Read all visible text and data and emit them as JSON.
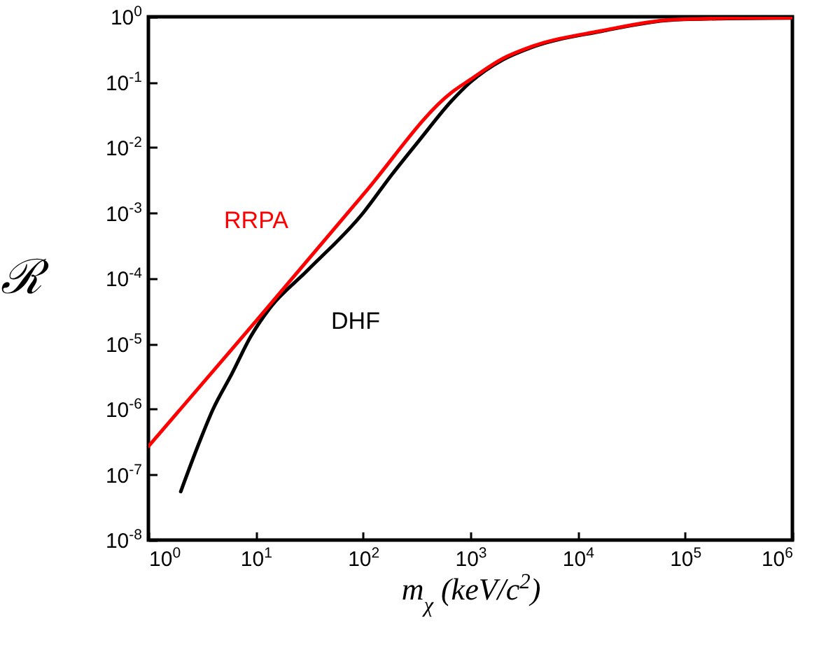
{
  "chart_data": {
    "type": "line",
    "xlabel": "m$_{χ}$ (keV/c$^{2}$)",
    "ylabel": "ℛ",
    "log": "xy",
    "grid": false,
    "line_style": "solid",
    "marker": "none",
    "xlim": [
      1,
      1000000
    ],
    "ylim": [
      1e-08,
      1
    ],
    "xticks": [
      {
        "value": 1,
        "label": "10$^{0}$"
      },
      {
        "value": 10,
        "label": "10$^{1}$"
      },
      {
        "value": 100,
        "label": "10$^{2}$"
      },
      {
        "value": 1000,
        "label": "10$^{3}$"
      },
      {
        "value": 10000,
        "label": "10$^{4}$"
      },
      {
        "value": 100000,
        "label": "10$^{5}$"
      },
      {
        "value": 1000000,
        "label": "10$^{6}$"
      }
    ],
    "yticks": [
      {
        "value": 1e-08,
        "label": "10$^{-8}$"
      },
      {
        "value": 1e-07,
        "label": "10$^{-7}$"
      },
      {
        "value": 1e-06,
        "label": "10$^{-6}$"
      },
      {
        "value": 1e-05,
        "label": "10$^{-5}$"
      },
      {
        "value": 0.0001,
        "label": "10$^{-4}$"
      },
      {
        "value": 0.001,
        "label": "10$^{-3}$"
      },
      {
        "value": 0.01,
        "label": "10$^{-2}$"
      },
      {
        "value": 0.1,
        "label": "10$^{-1}$"
      },
      {
        "value": 1,
        "label": "10$^{0}$"
      }
    ],
    "series": [
      {
        "name": "DHF",
        "color": "#000000",
        "x": [
          2,
          3,
          4,
          6,
          9,
          13.5,
          30,
          100,
          184,
          335,
          670,
          1000,
          2000,
          3700,
          16600,
          74000,
          245000,
          1000000
        ],
        "values": [
          5.5e-08,
          3.2e-07,
          1e-06,
          3.5e-06,
          1.3e-05,
          3.5e-05,
          0.00013,
          0.001,
          0.0038,
          0.013,
          0.052,
          0.1,
          0.22,
          0.34,
          0.6,
          0.89,
          0.94,
          0.96
        ]
      },
      {
        "name": "RRPA",
        "color": "#ff0000",
        "x": [
          1,
          10,
          100,
          670,
          1000,
          2000,
          3700,
          16600,
          74000,
          245000,
          1000000
        ],
        "values": [
          2.7e-07,
          2.2e-05,
          0.0019,
          0.07,
          0.11,
          0.23,
          0.35,
          0.61,
          0.9,
          0.95,
          0.97
        ]
      }
    ]
  }
}
